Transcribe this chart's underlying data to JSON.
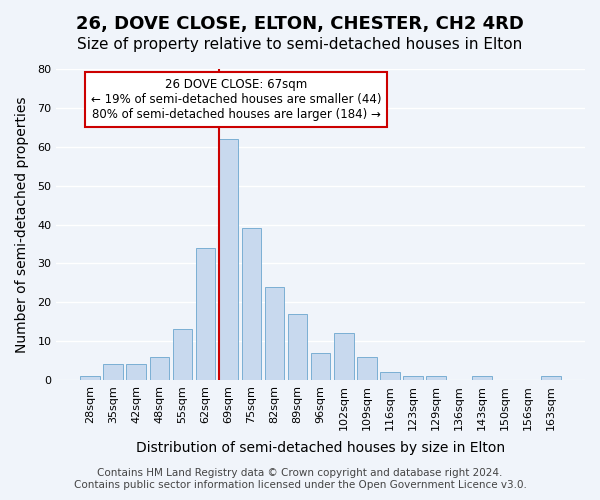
{
  "title": "26, DOVE CLOSE, ELTON, CHESTER, CH2 4RD",
  "subtitle": "Size of property relative to semi-detached houses in Elton",
  "xlabel": "Distribution of semi-detached houses by size in Elton",
  "ylabel": "Number of semi-detached properties",
  "categories": [
    "28sqm",
    "35sqm",
    "42sqm",
    "48sqm",
    "55sqm",
    "62sqm",
    "69sqm",
    "75sqm",
    "82sqm",
    "89sqm",
    "96sqm",
    "102sqm",
    "109sqm",
    "116sqm",
    "123sqm",
    "129sqm",
    "136sqm",
    "143sqm",
    "150sqm",
    "156sqm",
    "163sqm"
  ],
  "values": [
    1,
    4,
    4,
    6,
    13,
    34,
    62,
    39,
    24,
    17,
    7,
    12,
    6,
    2,
    1,
    1,
    0,
    1,
    0,
    0,
    1
  ],
  "bar_color": "#c8d9ee",
  "bar_edge_color": "#7bafd4",
  "highlight_bar_index": 6,
  "highlight_line_color": "#cc0000",
  "ylim": [
    0,
    80
  ],
  "yticks": [
    0,
    10,
    20,
    30,
    40,
    50,
    60,
    70,
    80
  ],
  "annotation_text_line1": "26 DOVE CLOSE: 67sqm",
  "annotation_text_line2": "← 19% of semi-detached houses are smaller (44)",
  "annotation_text_line3": "80% of semi-detached houses are larger (184) →",
  "annotation_box_color": "#ffffff",
  "annotation_box_edge": "#cc0000",
  "footer_line1": "Contains HM Land Registry data © Crown copyright and database right 2024.",
  "footer_line2": "Contains public sector information licensed under the Open Government Licence v3.0.",
  "background_color": "#f0f4fa",
  "grid_color": "#ffffff",
  "title_fontsize": 13,
  "subtitle_fontsize": 11,
  "axis_label_fontsize": 10,
  "tick_fontsize": 8,
  "footer_fontsize": 7.5
}
